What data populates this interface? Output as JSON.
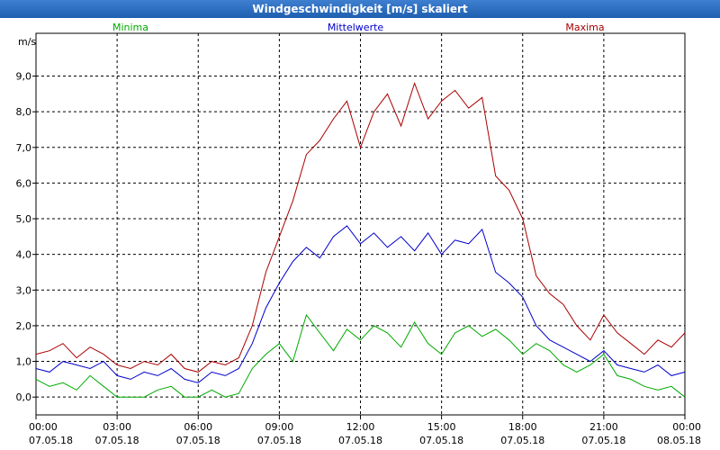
{
  "window": {
    "title": "Windgeschwindigkeit [m/s] skaliert"
  },
  "chart_data": {
    "type": "line",
    "ylabel": "m/s",
    "ylim": [
      -0.5,
      10.2
    ],
    "yticks": [
      0,
      1,
      2,
      3,
      4,
      5,
      6,
      7,
      8,
      9
    ],
    "ytick_labels": [
      "0,0",
      "1,0",
      "2,0",
      "3,0",
      "4,0",
      "5,0",
      "6,0",
      "7,0",
      "8,0",
      "9,0"
    ],
    "x_range_hours": [
      0,
      24
    ],
    "x_ticks_hours": [
      0,
      3,
      6,
      9,
      12,
      15,
      18,
      21,
      24
    ],
    "x_tick_labels": [
      [
        "00:00",
        "07.05.18"
      ],
      [
        "03:00",
        "07.05.18"
      ],
      [
        "06:00",
        "07.05.18"
      ],
      [
        "09:00",
        "07.05.18"
      ],
      [
        "12:00",
        "07.05.18"
      ],
      [
        "15:00",
        "07.05.18"
      ],
      [
        "18:00",
        "07.05.18"
      ],
      [
        "21:00",
        "07.05.18"
      ],
      [
        "00:00",
        "08.05.18"
      ]
    ],
    "grid": true,
    "legend_position": "top",
    "series": [
      {
        "name": "Minima",
        "color": "#00aa00",
        "x": [
          0,
          0.5,
          1,
          1.5,
          2,
          2.5,
          3,
          3.5,
          4,
          4.5,
          5,
          5.5,
          6,
          6.5,
          7,
          7.5,
          8,
          8.5,
          9,
          9.5,
          10,
          10.5,
          11,
          11.5,
          12,
          12.5,
          13,
          13.5,
          14,
          14.5,
          15,
          15.5,
          16,
          16.5,
          17,
          17.5,
          18,
          18.5,
          19,
          19.5,
          20,
          20.5,
          21,
          21.5,
          22,
          22.5,
          23,
          23.5,
          24
        ],
        "values": [
          0.5,
          0.3,
          0.4,
          0.2,
          0.6,
          0.3,
          0,
          0,
          0,
          0.2,
          0.3,
          0,
          0,
          0.2,
          0,
          0.1,
          0.8,
          1.2,
          1.5,
          1.0,
          2.3,
          1.8,
          1.3,
          1.9,
          1.6,
          2.0,
          1.8,
          1.4,
          2.1,
          1.5,
          1.2,
          1.8,
          2.0,
          1.7,
          1.9,
          1.6,
          1.2,
          1.5,
          1.3,
          0.9,
          0.7,
          0.9,
          1.2,
          0.6,
          0.5,
          0.3,
          0.2,
          0.3,
          0
        ]
      },
      {
        "name": "Mittelwerte",
        "color": "#0000cc",
        "x": [
          0,
          0.5,
          1,
          1.5,
          2,
          2.5,
          3,
          3.5,
          4,
          4.5,
          5,
          5.5,
          6,
          6.5,
          7,
          7.5,
          8,
          8.5,
          9,
          9.5,
          10,
          10.5,
          11,
          11.5,
          12,
          12.5,
          13,
          13.5,
          14,
          14.5,
          15,
          15.5,
          16,
          16.5,
          17,
          17.5,
          18,
          18.5,
          19,
          19.5,
          20,
          20.5,
          21,
          21.5,
          22,
          22.5,
          23,
          23.5,
          24
        ],
        "values": [
          0.8,
          0.7,
          1.0,
          0.9,
          0.8,
          1.0,
          0.6,
          0.5,
          0.7,
          0.6,
          0.8,
          0.5,
          0.4,
          0.7,
          0.6,
          0.8,
          1.5,
          2.5,
          3.2,
          3.8,
          4.2,
          3.9,
          4.5,
          4.8,
          4.3,
          4.6,
          4.2,
          4.5,
          4.1,
          4.6,
          4.0,
          4.4,
          4.3,
          4.7,
          3.5,
          3.2,
          2.8,
          2.0,
          1.6,
          1.4,
          1.2,
          1.0,
          1.3,
          0.9,
          0.8,
          0.7,
          0.9,
          0.6,
          0.7
        ]
      },
      {
        "name": "Maxima",
        "color": "#aa0000",
        "x": [
          0,
          0.5,
          1,
          1.5,
          2,
          2.5,
          3,
          3.5,
          4,
          4.5,
          5,
          5.5,
          6,
          6.5,
          7,
          7.5,
          8,
          8.5,
          9,
          9.5,
          10,
          10.5,
          11,
          11.5,
          12,
          12.5,
          13,
          13.5,
          14,
          14.5,
          15,
          15.5,
          16,
          16.5,
          17,
          17.5,
          18,
          18.5,
          19,
          19.5,
          20,
          20.5,
          21,
          21.5,
          22,
          22.5,
          23,
          23.5,
          24
        ],
        "values": [
          1.2,
          1.3,
          1.5,
          1.1,
          1.4,
          1.2,
          0.9,
          0.8,
          1.0,
          0.9,
          1.2,
          0.8,
          0.7,
          1.0,
          0.9,
          1.1,
          2.0,
          3.5,
          4.5,
          5.5,
          6.8,
          7.2,
          7.8,
          8.3,
          7.0,
          8.0,
          8.5,
          7.6,
          8.8,
          7.8,
          8.3,
          8.6,
          8.1,
          8.4,
          6.2,
          5.8,
          5.0,
          3.4,
          2.9,
          2.6,
          2.0,
          1.6,
          2.3,
          1.8,
          1.5,
          1.2,
          1.6,
          1.4,
          1.8
        ]
      }
    ]
  }
}
